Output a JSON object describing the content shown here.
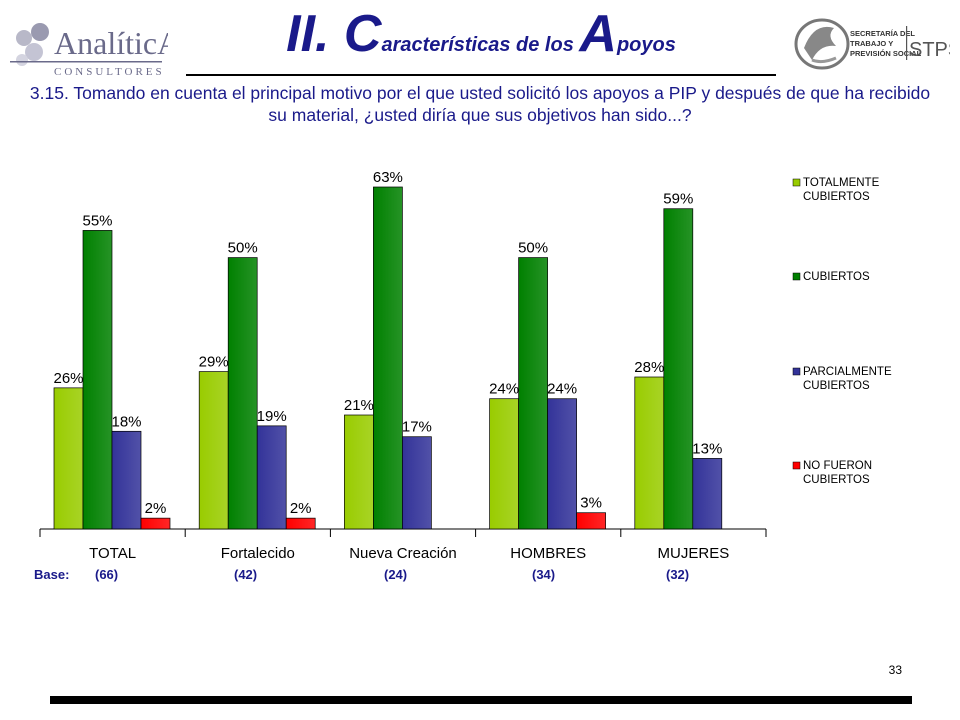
{
  "header": {
    "logo_left_text": "AnalíticA",
    "logo_left_sub": "CONSULTORES",
    "logo_right_line1": "SECRETARÍA DEL",
    "logo_right_line2": "TRABAJO Y",
    "logo_right_line3": "PREVISIÓN SOCIAL",
    "logo_right_acronym": "STPS",
    "title_part1_big": "II. C",
    "title_part1_small": "aracterísticas de los ",
    "title_part2_big": "A",
    "title_part2_small": "poyos"
  },
  "question": "3.15. Tomando en cuenta el principal motivo por el que usted solicitó los apoyos a PIP y después de que ha recibido su material, ¿usted diría que sus objetivos han sido...?",
  "base": {
    "label": "Base:",
    "values": [
      "(66)",
      "(42)",
      "(24)",
      "(34)",
      "(32)"
    ]
  },
  "page_number": "33",
  "chart_data": {
    "type": "bar",
    "categories": [
      "TOTAL",
      "Fortalecido",
      "Nueva Creación",
      "HOMBRES",
      "MUJERES"
    ],
    "series": [
      {
        "name": "TOTALMENTE CUBIERTOS",
        "color": "#99cc00",
        "values": [
          26,
          29,
          21,
          24,
          28
        ],
        "labels": [
          "26%",
          "29%",
          "21%",
          "24%",
          "28%"
        ]
      },
      {
        "name": "CUBIERTOS",
        "color": "#008000",
        "values": [
          55,
          50,
          63,
          50,
          59
        ],
        "labels": [
          "55%",
          "50%",
          "63%",
          "50%",
          "59%"
        ]
      },
      {
        "name": "PARCIALMENTE CUBIERTOS",
        "color": "#333399",
        "values": [
          18,
          19,
          17,
          24,
          13
        ],
        "labels": [
          "18%",
          "19%",
          "17%",
          "24%",
          "13%"
        ]
      },
      {
        "name": "NO FUERON CUBIERTOS",
        "color": "#ff0000",
        "values": [
          2,
          2,
          null,
          3,
          null
        ],
        "labels": [
          "2%",
          "2%",
          "",
          "3%",
          ""
        ]
      }
    ],
    "ylim": [
      0,
      65
    ],
    "grid": false,
    "legend_position": "right"
  }
}
